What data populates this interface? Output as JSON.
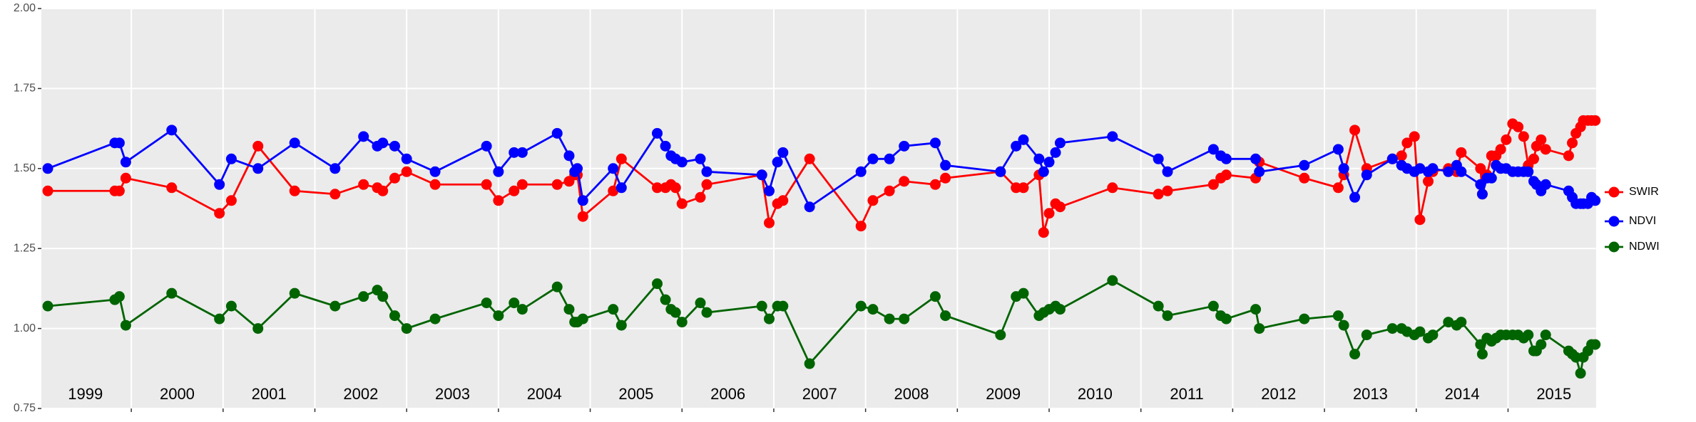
{
  "chart_data": {
    "type": "line",
    "x": [
      1999.09,
      1999.82,
      1999.87,
      1999.94,
      2000.44,
      2000.96,
      2001.09,
      2001.38,
      2001.78,
      2002.22,
      2002.53,
      2002.68,
      2002.74,
      2002.87,
      2003.0,
      2003.31,
      2003.87,
      2004.0,
      2004.17,
      2004.26,
      2004.64,
      2004.77,
      2004.83,
      2004.86,
      2004.92,
      2005.25,
      2005.34,
      2005.73,
      2005.82,
      2005.88,
      2005.93,
      2006.0,
      2006.2,
      2006.27,
      2006.87,
      2006.95,
      2007.04,
      2007.1,
      2007.39,
      2007.95,
      2008.08,
      2008.26,
      2008.42,
      2008.76,
      2008.87,
      2009.47,
      2009.64,
      2009.72,
      2009.89,
      2009.94,
      2010.0,
      2010.07,
      2010.12,
      2010.69,
      2011.19,
      2011.29,
      2011.79,
      2011.87,
      2011.93,
      2012.25,
      2012.29,
      2012.78,
      2013.15,
      2013.21,
      2013.33,
      2013.46,
      2013.74,
      2013.84,
      2013.9,
      2013.98,
      2014.04,
      2014.13,
      2014.18,
      2014.35,
      2014.44,
      2014.49,
      2014.7,
      2014.72,
      2014.77,
      2014.82,
      2014.87,
      2014.92,
      2014.98,
      2015.05,
      2015.11,
      2015.17,
      2015.22,
      2015.28,
      2015.31,
      2015.36,
      2015.41,
      2015.66,
      2015.7,
      2015.74,
      2015.79,
      2015.82,
      2015.87,
      2015.91,
      2015.95
    ],
    "series": [
      {
        "name": "SWIR",
        "color": "#ff0000",
        "values": [
          1.43,
          1.43,
          1.43,
          1.47,
          1.44,
          1.36,
          1.4,
          1.57,
          1.43,
          1.42,
          1.45,
          1.44,
          1.43,
          1.47,
          1.49,
          1.45,
          1.45,
          1.4,
          1.43,
          1.45,
          1.45,
          1.46,
          1.48,
          1.48,
          1.35,
          1.43,
          1.53,
          1.44,
          1.44,
          1.45,
          1.44,
          1.39,
          1.41,
          1.45,
          1.48,
          1.33,
          1.39,
          1.4,
          1.53,
          1.32,
          1.4,
          1.43,
          1.46,
          1.45,
          1.47,
          1.49,
          1.44,
          1.44,
          1.48,
          1.3,
          1.36,
          1.39,
          1.38,
          1.44,
          1.42,
          1.43,
          1.45,
          1.47,
          1.48,
          1.47,
          1.52,
          1.47,
          1.44,
          1.48,
          1.62,
          1.5,
          1.53,
          1.54,
          1.58,
          1.6,
          1.34,
          1.46,
          1.49,
          1.5,
          1.49,
          1.55,
          1.5,
          1.42,
          1.48,
          1.54,
          1.54,
          1.56,
          1.59,
          1.64,
          1.63,
          1.6,
          1.51,
          1.53,
          1.57,
          1.59,
          1.56,
          1.54,
          1.58,
          1.61,
          1.63,
          1.65,
          1.65,
          1.65,
          1.65
        ]
      },
      {
        "name": "NDVI",
        "color": "#0000ff",
        "values": [
          1.5,
          1.58,
          1.58,
          1.52,
          1.62,
          1.45,
          1.53,
          1.5,
          1.58,
          1.5,
          1.6,
          1.57,
          1.58,
          1.57,
          1.53,
          1.49,
          1.57,
          1.49,
          1.55,
          1.55,
          1.61,
          1.54,
          1.49,
          1.5,
          1.4,
          1.5,
          1.44,
          1.61,
          1.57,
          1.54,
          1.53,
          1.52,
          1.53,
          1.49,
          1.48,
          1.43,
          1.52,
          1.55,
          1.38,
          1.49,
          1.53,
          1.53,
          1.57,
          1.58,
          1.51,
          1.49,
          1.57,
          1.59,
          1.53,
          1.49,
          1.52,
          1.55,
          1.58,
          1.6,
          1.53,
          1.49,
          1.56,
          1.54,
          1.53,
          1.53,
          1.49,
          1.51,
          1.56,
          1.5,
          1.41,
          1.48,
          1.53,
          1.51,
          1.5,
          1.49,
          1.5,
          1.49,
          1.5,
          1.49,
          1.51,
          1.49,
          1.45,
          1.42,
          1.47,
          1.47,
          1.51,
          1.5,
          1.5,
          1.49,
          1.49,
          1.49,
          1.49,
          1.46,
          1.45,
          1.43,
          1.45,
          1.43,
          1.41,
          1.39,
          1.39,
          1.39,
          1.39,
          1.41,
          1.4
        ]
      },
      {
        "name": "NDWI",
        "color": "#006400",
        "values": [
          1.07,
          1.09,
          1.1,
          1.01,
          1.11,
          1.03,
          1.07,
          1.0,
          1.11,
          1.07,
          1.1,
          1.12,
          1.1,
          1.04,
          1.0,
          1.03,
          1.08,
          1.04,
          1.08,
          1.06,
          1.13,
          1.06,
          1.02,
          1.02,
          1.03,
          1.06,
          1.01,
          1.14,
          1.09,
          1.06,
          1.05,
          1.02,
          1.08,
          1.05,
          1.07,
          1.03,
          1.07,
          1.07,
          0.89,
          1.07,
          1.06,
          1.03,
          1.03,
          1.1,
          1.04,
          0.98,
          1.1,
          1.11,
          1.04,
          1.05,
          1.06,
          1.07,
          1.06,
          1.15,
          1.07,
          1.04,
          1.07,
          1.04,
          1.03,
          1.06,
          1.0,
          1.03,
          1.04,
          1.01,
          0.92,
          0.98,
          1.0,
          1.0,
          0.99,
          0.98,
          0.99,
          0.97,
          0.98,
          1.02,
          1.01,
          1.02,
          0.95,
          0.92,
          0.97,
          0.96,
          0.97,
          0.98,
          0.98,
          0.98,
          0.98,
          0.97,
          0.98,
          0.93,
          0.93,
          0.95,
          0.98,
          0.93,
          0.92,
          0.91,
          0.86,
          0.91,
          0.93,
          0.95,
          0.95
        ]
      }
    ],
    "xlim": [
      1999.02,
      2015.96
    ],
    "xticks": [
      2000,
      2001,
      2002,
      2003,
      2004,
      2005,
      2006,
      2007,
      2008,
      2009,
      2010,
      2011,
      2012,
      2013,
      2014,
      2015
    ],
    "ylim": [
      0.75,
      2.0
    ],
    "yticks": [
      {
        "value": 0.75,
        "label": "0.75"
      },
      {
        "value": 1.0,
        "label": "1.00"
      },
      {
        "value": 1.25,
        "label": "1.25"
      },
      {
        "value": 1.5,
        "label": "1.50"
      },
      {
        "value": 1.75,
        "label": "1.75"
      },
      {
        "value": 2.0,
        "label": "2.00"
      }
    ],
    "annotations": [
      {
        "x": 1999.5,
        "label": "1999"
      },
      {
        "x": 2000.5,
        "label": "2000"
      },
      {
        "x": 2001.5,
        "label": "2001"
      },
      {
        "x": 2002.5,
        "label": "2002"
      },
      {
        "x": 2003.5,
        "label": "2003"
      },
      {
        "x": 2004.5,
        "label": "2004"
      },
      {
        "x": 2005.5,
        "label": "2005"
      },
      {
        "x": 2006.5,
        "label": "2006"
      },
      {
        "x": 2007.5,
        "label": "2007"
      },
      {
        "x": 2008.5,
        "label": "2008"
      },
      {
        "x": 2009.5,
        "label": "2009"
      },
      {
        "x": 2010.5,
        "label": "2010"
      },
      {
        "x": 2011.5,
        "label": "2011"
      },
      {
        "x": 2012.5,
        "label": "2012"
      },
      {
        "x": 2013.5,
        "label": "2013"
      },
      {
        "x": 2014.5,
        "label": "2014"
      },
      {
        "x": 2015.5,
        "label": "2015"
      }
    ],
    "grid": true,
    "legend": "right"
  }
}
